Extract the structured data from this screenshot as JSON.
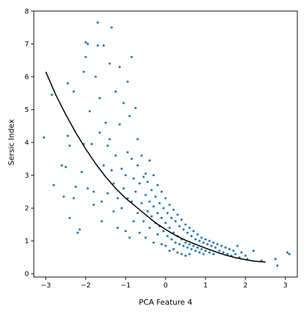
{
  "chart_data": {
    "type": "scatter",
    "title": "",
    "xlabel": "PCA Feature 4",
    "ylabel": "Sersic Index",
    "xlim": [
      -3.3,
      3.3
    ],
    "ylim": [
      -0.1,
      8
    ],
    "x_ticks": [
      -3,
      -2,
      -1,
      0,
      1,
      2,
      3
    ],
    "y_ticks": [
      0,
      1,
      2,
      3,
      4,
      5,
      6,
      7,
      8
    ],
    "x_tick_labels": [
      "−3",
      "−2",
      "−1",
      "0",
      "1",
      "2",
      "3"
    ],
    "y_tick_labels": [
      "0",
      "1",
      "2",
      "3",
      "4",
      "5",
      "6",
      "7",
      "8"
    ],
    "grid": false,
    "legend": "none",
    "series": [
      {
        "kind": "scatter",
        "color": "#1f77b4",
        "points": [
          [
            -3.05,
            4.15
          ],
          [
            -2.85,
            5.45
          ],
          [
            -2.8,
            2.7
          ],
          [
            -2.6,
            3.3
          ],
          [
            -2.55,
            2.35
          ],
          [
            -2.5,
            3.25
          ],
          [
            -2.45,
            4.2
          ],
          [
            -2.45,
            5.8
          ],
          [
            -2.4,
            3.9
          ],
          [
            -2.4,
            1.7
          ],
          [
            -2.3,
            5.55
          ],
          [
            -2.3,
            2.3
          ],
          [
            -2.25,
            2.65
          ],
          [
            -2.2,
            1.25
          ],
          [
            -2.15,
            1.35
          ],
          [
            -2.1,
            3.1
          ],
          [
            -2.05,
            3.95
          ],
          [
            -2.05,
            6.15
          ],
          [
            -2.0,
            7.05
          ],
          [
            -2.0,
            6.6
          ],
          [
            -1.95,
            7.0
          ],
          [
            -1.95,
            2.6
          ],
          [
            -1.9,
            4.95
          ],
          [
            -1.85,
            3.95
          ],
          [
            -1.8,
            2.5
          ],
          [
            -1.8,
            2.1
          ],
          [
            -1.75,
            6.0
          ],
          [
            -1.7,
            7.65
          ],
          [
            -1.7,
            6.95
          ],
          [
            -1.65,
            5.35
          ],
          [
            -1.65,
            4.3
          ],
          [
            -1.6,
            2.2
          ],
          [
            -1.6,
            1.6
          ],
          [
            -1.55,
            6.95
          ],
          [
            -1.55,
            3.3
          ],
          [
            -1.5,
            4.6
          ],
          [
            -1.45,
            3.9
          ],
          [
            -1.45,
            2.45
          ],
          [
            -1.4,
            6.4
          ],
          [
            -1.4,
            4.1
          ],
          [
            -1.35,
            7.5
          ],
          [
            -1.35,
            3.15
          ],
          [
            -1.3,
            1.9
          ],
          [
            -1.3,
            2.75
          ],
          [
            -1.25,
            5.55
          ],
          [
            -1.25,
            3.6
          ],
          [
            -1.2,
            1.4
          ],
          [
            -1.2,
            2.3
          ],
          [
            -1.15,
            6.3
          ],
          [
            -1.15,
            4.55
          ],
          [
            -1.1,
            3.2
          ],
          [
            -1.1,
            2.0
          ],
          [
            -1.05,
            5.2
          ],
          [
            -1.05,
            2.6
          ],
          [
            -1.0,
            1.3
          ],
          [
            -1.0,
            3.0
          ],
          [
            -0.95,
            5.85
          ],
          [
            -0.95,
            3.7
          ],
          [
            -0.95,
            2.3
          ],
          [
            -0.9,
            1.1
          ],
          [
            -0.9,
            4.8
          ],
          [
            -0.85,
            6.6
          ],
          [
            -0.85,
            2.2
          ],
          [
            -0.85,
            3.5
          ],
          [
            -0.8,
            1.6
          ],
          [
            -0.8,
            2.9
          ],
          [
            -0.75,
            5.05
          ],
          [
            -0.75,
            2.5
          ],
          [
            -0.7,
            3.3
          ],
          [
            -0.7,
            1.85
          ],
          [
            -0.7,
            4.1
          ],
          [
            -0.65,
            2.75
          ],
          [
            -0.65,
            1.25
          ],
          [
            -0.6,
            3.6
          ],
          [
            -0.6,
            2.15
          ],
          [
            -0.55,
            2.95
          ],
          [
            -0.55,
            1.6
          ],
          [
            -0.5,
            3.05
          ],
          [
            -0.5,
            2.4
          ],
          [
            -0.5,
            1.1
          ],
          [
            -0.45,
            2.8
          ],
          [
            -0.45,
            1.9
          ],
          [
            -0.4,
            3.45
          ],
          [
            -0.4,
            2.2
          ],
          [
            -0.4,
            1.4
          ],
          [
            -0.35,
            2.55
          ],
          [
            -0.35,
            1.75
          ],
          [
            -0.3,
            3.0
          ],
          [
            -0.3,
            2.05
          ],
          [
            -0.3,
            0.95
          ],
          [
            -0.25,
            2.35
          ],
          [
            -0.25,
            1.55
          ],
          [
            -0.2,
            2.7
          ],
          [
            -0.2,
            1.85
          ],
          [
            -0.2,
            1.2
          ],
          [
            -0.15,
            2.15
          ],
          [
            -0.15,
            1.45
          ],
          [
            -0.1,
            2.5
          ],
          [
            -0.1,
            1.7
          ],
          [
            -0.1,
            0.9
          ],
          [
            -0.05,
            2.0
          ],
          [
            -0.05,
            1.3
          ],
          [
            0.0,
            2.3
          ],
          [
            0.0,
            1.55
          ],
          [
            0.0,
            0.85
          ],
          [
            0.05,
            1.85
          ],
          [
            0.05,
            1.15
          ],
          [
            0.1,
            2.1
          ],
          [
            0.1,
            1.4
          ],
          [
            0.1,
            0.7
          ],
          [
            0.15,
            1.7
          ],
          [
            0.15,
            1.05
          ],
          [
            0.2,
            1.95
          ],
          [
            0.2,
            1.25
          ],
          [
            0.2,
            0.75
          ],
          [
            0.25,
            1.6
          ],
          [
            0.25,
            0.95
          ],
          [
            0.3,
            1.8
          ],
          [
            0.3,
            1.15
          ],
          [
            0.3,
            0.65
          ],
          [
            0.35,
            1.45
          ],
          [
            0.35,
            0.9
          ],
          [
            0.4,
            1.65
          ],
          [
            0.4,
            1.05
          ],
          [
            0.4,
            0.6
          ],
          [
            0.45,
            1.35
          ],
          [
            0.45,
            0.85
          ],
          [
            0.5,
            1.5
          ],
          [
            0.5,
            0.95
          ],
          [
            0.5,
            0.55
          ],
          [
            0.55,
            1.25
          ],
          [
            0.55,
            0.8
          ],
          [
            0.6,
            1.4
          ],
          [
            0.6,
            0.9
          ],
          [
            0.6,
            0.6
          ],
          [
            0.65,
            1.15
          ],
          [
            0.65,
            0.75
          ],
          [
            0.7,
            1.3
          ],
          [
            0.7,
            0.85
          ],
          [
            0.75,
            1.05
          ],
          [
            0.75,
            0.7
          ],
          [
            0.8,
            1.2
          ],
          [
            0.8,
            0.8
          ],
          [
            0.85,
            1.0
          ],
          [
            0.85,
            0.65
          ],
          [
            0.9,
            1.1
          ],
          [
            0.9,
            0.75
          ],
          [
            0.95,
            0.95
          ],
          [
            0.95,
            0.6
          ],
          [
            1.0,
            1.05
          ],
          [
            1.0,
            0.7
          ],
          [
            1.05,
            0.9
          ],
          [
            1.1,
            1.0
          ],
          [
            1.1,
            0.65
          ],
          [
            1.15,
            0.85
          ],
          [
            1.2,
            0.95
          ],
          [
            1.2,
            0.6
          ],
          [
            1.25,
            0.8
          ],
          [
            1.3,
            0.9
          ],
          [
            1.35,
            0.7
          ],
          [
            1.4,
            0.85
          ],
          [
            1.45,
            0.65
          ],
          [
            1.5,
            0.8
          ],
          [
            1.55,
            0.6
          ],
          [
            1.6,
            0.75
          ],
          [
            1.65,
            0.55
          ],
          [
            1.7,
            0.7
          ],
          [
            1.75,
            0.6
          ],
          [
            1.8,
            0.85
          ],
          [
            1.85,
            0.5
          ],
          [
            1.9,
            0.65
          ],
          [
            2.0,
            0.55
          ],
          [
            2.05,
            0.45
          ],
          [
            2.2,
            0.7
          ],
          [
            2.4,
            0.4
          ],
          [
            2.75,
            0.45
          ],
          [
            2.8,
            0.25
          ],
          [
            3.05,
            0.65
          ],
          [
            3.1,
            0.6
          ]
        ]
      },
      {
        "kind": "line",
        "color": "#000000",
        "points": [
          [
            -3.0,
            6.15
          ],
          [
            -2.75,
            5.45
          ],
          [
            -2.5,
            4.85
          ],
          [
            -2.25,
            4.3
          ],
          [
            -2.0,
            3.8
          ],
          [
            -1.75,
            3.35
          ],
          [
            -1.5,
            2.95
          ],
          [
            -1.25,
            2.6
          ],
          [
            -1.0,
            2.3
          ],
          [
            -0.75,
            2.05
          ],
          [
            -0.5,
            1.8
          ],
          [
            -0.25,
            1.55
          ],
          [
            0.0,
            1.35
          ],
          [
            0.25,
            1.17
          ],
          [
            0.5,
            1.02
          ],
          [
            0.75,
            0.9
          ],
          [
            1.0,
            0.78
          ],
          [
            1.25,
            0.67
          ],
          [
            1.5,
            0.57
          ],
          [
            1.75,
            0.49
          ],
          [
            2.0,
            0.43
          ],
          [
            2.25,
            0.38
          ],
          [
            2.5,
            0.36
          ]
        ]
      }
    ]
  }
}
